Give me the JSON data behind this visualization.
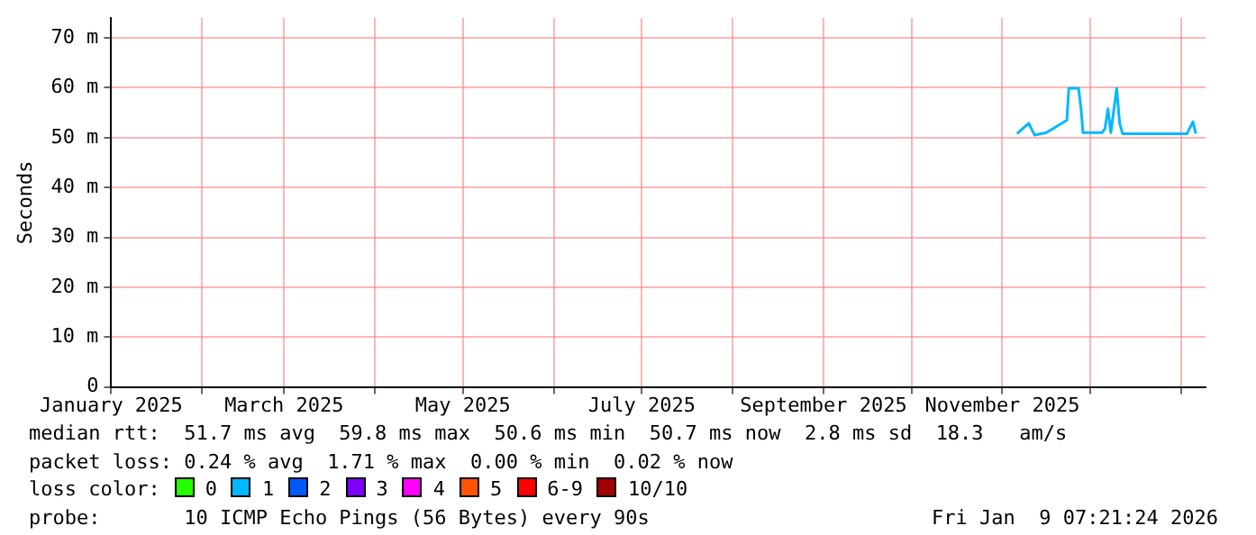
{
  "chart_data": {
    "type": "line",
    "ylabel": "Seconds",
    "x": [
      "2025-11-06",
      "2025-11-10",
      "2025-11-12",
      "2025-11-16",
      "2025-11-23",
      "2025-11-23T16:00",
      "2025-11-27",
      "2025-11-27T20:00",
      "2025-11-28T12:00",
      "2025-12-05",
      "2025-12-06",
      "2025-12-07",
      "2025-12-08",
      "2025-12-10",
      "2025-12-11",
      "2025-12-12",
      "2025-12-22",
      "2026-01-03",
      "2026-01-05",
      "2026-01-06"
    ],
    "series": [
      {
        "color": "#00b8ff",
        "values": [
          50.8,
          52.9,
          50.5,
          51.0,
          53.5,
          59.9,
          59.9,
          55.8,
          51.0,
          51.0,
          51.8,
          55.8,
          51.0,
          59.9,
          52.9,
          50.8,
          50.8,
          50.8,
          53.2,
          50.8
        ]
      }
    ],
    "xlim": [
      "2025-01-01",
      "2026-01-09T07:21"
    ],
    "xticks": [
      {
        "value": "2025-01-01",
        "label": "January 2025"
      },
      {
        "value": "2025-02-01",
        "label": null
      },
      {
        "value": "2025-03-01",
        "label": "March 2025"
      },
      {
        "value": "2025-04-01",
        "label": null
      },
      {
        "value": "2025-05-01",
        "label": "May 2025"
      },
      {
        "value": "2025-06-01",
        "label": null
      },
      {
        "value": "2025-07-01",
        "label": "July 2025"
      },
      {
        "value": "2025-08-01",
        "label": null
      },
      {
        "value": "2025-09-01",
        "label": "September 2025"
      },
      {
        "value": "2025-10-01",
        "label": null
      },
      {
        "value": "2025-11-01",
        "label": "November 2025"
      },
      {
        "value": "2025-12-01",
        "label": null
      },
      {
        "value": "2026-01-01",
        "label": null
      }
    ],
    "ylim": [
      0,
      74
    ],
    "yticks": [
      {
        "value": 0,
        "label": "0"
      },
      {
        "value": 10,
        "label": "10 m"
      },
      {
        "value": 20,
        "label": "20 m"
      },
      {
        "value": 30,
        "label": "30 m"
      },
      {
        "value": 40,
        "label": "40 m"
      },
      {
        "value": 50,
        "label": "50 m"
      },
      {
        "value": 60,
        "label": "60 m"
      },
      {
        "value": 70,
        "label": "70 m"
      }
    ],
    "grid": true,
    "marker": "none",
    "line_style": "solid",
    "annotations": [
      "median rtt:  51.7 ms avg  59.8 ms max  50.6 ms min  50.7 ms now  2.8 ms sd  18.3   am/s",
      "packet loss: 0.24 % avg  1.71 % max  0.00 % min  0.02 % now",
      "loss color:",
      "0",
      "1",
      "2",
      "3",
      "4",
      "5",
      "6-9",
      "10/10",
      "probe:       10 ICMP Echo Pings (56 Bytes) every 90s",
      "Fri Jan  9 07:21:24 2026"
    ]
  }
}
